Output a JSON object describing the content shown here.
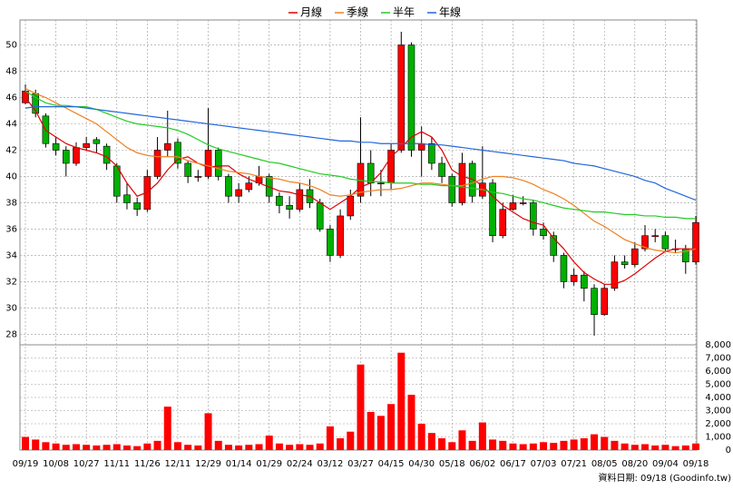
{
  "chart_data": {
    "type": "candlestick",
    "categories": [
      "09/19",
      null,
      null,
      "10/08",
      null,
      null,
      "10/27",
      null,
      null,
      "11/11",
      null,
      null,
      "11/26",
      null,
      null,
      "12/11",
      null,
      null,
      "12/29",
      null,
      null,
      "01/14",
      null,
      null,
      "01/29",
      null,
      null,
      "02/24",
      null,
      null,
      "03/12",
      null,
      null,
      "03/27",
      null,
      null,
      "04/15",
      null,
      null,
      "04/30",
      null,
      null,
      "05/18",
      null,
      null,
      "06/02",
      null,
      null,
      "06/17",
      null,
      null,
      "07/03",
      null,
      null,
      "07/21",
      null,
      null,
      "08/05",
      null,
      null,
      "08/20",
      null,
      null,
      "09/04",
      null,
      null,
      "09/18"
    ],
    "open": [
      45.6,
      46.3,
      44.6,
      42.5,
      42,
      41,
      42.2,
      42.8,
      42.3,
      40.8,
      38.6,
      38,
      37.5,
      40,
      42,
      42.6,
      41,
      40,
      40,
      42,
      40,
      38.5,
      39,
      39.5,
      40,
      38.5,
      37.8,
      37.5,
      39,
      38,
      36,
      34,
      37,
      38.5,
      41,
      39.5,
      39.5,
      42,
      50,
      42,
      42.5,
      41,
      40,
      38,
      41,
      38.5,
      39.5,
      35.5,
      37.5,
      38,
      38,
      36,
      35.5,
      34,
      32,
      32.5,
      31.5,
      29.5,
      31.5,
      33.5,
      33.3,
      34.5,
      35.5,
      35.5,
      34.5,
      34.5,
      33.5
    ],
    "high": [
      47,
      46.6,
      44.8,
      43,
      42.3,
      42.6,
      43,
      43,
      42.5,
      41,
      39.5,
      38.4,
      40.5,
      43,
      45,
      42.9,
      41.2,
      40.5,
      45.2,
      42.2,
      40.2,
      39.5,
      40,
      40.8,
      40.2,
      38.8,
      38.5,
      39.5,
      39.8,
      38.3,
      36.3,
      37.5,
      39,
      44.5,
      42,
      40.5,
      42.5,
      51,
      50.2,
      43.8,
      43,
      41.5,
      40.2,
      41.8,
      41.2,
      42.3,
      39.8,
      38,
      38.6,
      38.5,
      38.2,
      36.5,
      35.8,
      34.2,
      33,
      32.8,
      31.8,
      31.8,
      34,
      34,
      35,
      36.3,
      36,
      35.8,
      35.2,
      34.8,
      37
    ],
    "low": [
      45.5,
      44.5,
      42.2,
      41.6,
      40,
      40.8,
      42,
      41.8,
      40.5,
      38,
      37.5,
      37,
      37.3,
      39.8,
      41.5,
      40.6,
      39.5,
      39.6,
      39.8,
      39.7,
      38,
      38,
      38.8,
      39.3,
      38,
      37.2,
      36.8,
      37.3,
      37.6,
      35.8,
      33.5,
      33.8,
      36.7,
      38,
      38.5,
      38.5,
      39,
      41.8,
      41.5,
      40,
      40.5,
      39.5,
      37.7,
      37.8,
      38,
      38.3,
      35,
      35.3,
      37.4,
      37.8,
      35.5,
      35.2,
      33.5,
      31.5,
      31.7,
      30.5,
      27.9,
      29.4,
      31.3,
      33,
      33.1,
      34.3,
      35,
      34.3,
      34.2,
      32.6,
      33.3
    ],
    "close": [
      46.5,
      44.8,
      42.5,
      42,
      41,
      42.2,
      42.5,
      42.5,
      41,
      38.5,
      38,
      37.5,
      40,
      42,
      42.5,
      41,
      40,
      40,
      42,
      40,
      38.5,
      39,
      39.5,
      40,
      38.5,
      37.8,
      37.5,
      39,
      38,
      36,
      34,
      37,
      38.5,
      41,
      39.5,
      39.5,
      42,
      50,
      42,
      42.5,
      41,
      40,
      38,
      41,
      38.5,
      39.5,
      35.5,
      37.5,
      38,
      38,
      36,
      35.5,
      34,
      32,
      32.5,
      31.5,
      29.5,
      31.5,
      33.5,
      33.3,
      34.5,
      35.5,
      35.5,
      34.5,
      34.5,
      33.5,
      36.5
    ],
    "up_color": "#ff0000",
    "down_color": "#00b000",
    "ylim": [
      27.2,
      51.9
    ],
    "yticks": [
      28,
      30,
      32,
      34,
      36,
      38,
      40,
      42,
      44,
      46,
      48,
      50
    ],
    "grid": true,
    "series": [
      {
        "name": "月線",
        "color": "#e00000",
        "values": [
          46,
          45,
          43.5,
          43,
          42.5,
          42.2,
          42,
          41.8,
          41.5,
          40.8,
          39.5,
          38.5,
          38.8,
          39.5,
          40.5,
          41.3,
          41.5,
          41,
          40.7,
          40.8,
          40.8,
          40.2,
          39.8,
          39.5,
          39.2,
          38.9,
          38.8,
          38.6,
          38.5,
          38,
          37.5,
          38,
          38.5,
          39.2,
          39.5,
          40.3,
          41.5,
          42.2,
          43,
          43.4,
          43,
          42,
          40.5,
          40,
          39.8,
          39.3,
          38.5,
          37.8,
          37.3,
          36.8,
          36.5,
          36.3,
          35.3,
          34.5,
          33.5,
          32.7,
          32.2,
          31.8,
          31.8,
          32.1,
          32.6,
          33.2,
          33.8,
          34.3,
          34.5,
          34.5,
          34.5
        ]
      },
      {
        "name": "季線",
        "color": "#f08020",
        "values": [
          46.7,
          46.3,
          46,
          45.6,
          45.2,
          44.8,
          44.4,
          44,
          43.4,
          42.8,
          42.2,
          41.8,
          41.6,
          41.5,
          41.5,
          41.5,
          41.2,
          41,
          40.8,
          40.6,
          40.4,
          40.3,
          40.2,
          40,
          39.9,
          39.8,
          39.6,
          39.5,
          39.3,
          39,
          38.6,
          38.5,
          38.6,
          38.8,
          38.9,
          39,
          39,
          39.1,
          39.3,
          39.5,
          39.5,
          39.4,
          39.3,
          39.3,
          39.5,
          39.8,
          40,
          40,
          39.9,
          39.7,
          39.4,
          39,
          38.7,
          38.3,
          37.8,
          37.2,
          36.6,
          36.2,
          35.7,
          35.2,
          34.9,
          34.6,
          34.4,
          34.3,
          34.2,
          34.3,
          34.5
        ]
      },
      {
        "name": "半年",
        "color": "#22cc22",
        "values": [
          46.5,
          46,
          45.6,
          45.4,
          45.4,
          45.3,
          45.3,
          45.1,
          44.8,
          44.5,
          44.2,
          44,
          43.9,
          43.8,
          43.7,
          43.5,
          43.2,
          42.8,
          42.4,
          42.1,
          41.9,
          41.7,
          41.5,
          41.3,
          41.1,
          41,
          40.8,
          40.6,
          40.4,
          40.2,
          40.1,
          40,
          39.8,
          39.7,
          39.6,
          39.6,
          39.5,
          39.5,
          39.5,
          39.4,
          39.4,
          39.3,
          39.3,
          39.2,
          39.1,
          39,
          38.8,
          38.7,
          38.5,
          38.3,
          38.2,
          38,
          37.8,
          37.6,
          37.5,
          37.4,
          37.3,
          37.3,
          37.2,
          37.1,
          37.1,
          37,
          37,
          36.9,
          36.9,
          36.8,
          36.8
        ]
      },
      {
        "name": "年線",
        "color": "#2266dd",
        "values": [
          45.2,
          45.3,
          45.3,
          45.3,
          45.3,
          45.3,
          45.2,
          45.1,
          45,
          44.9,
          44.8,
          44.7,
          44.6,
          44.5,
          44.4,
          44.3,
          44.2,
          44.1,
          44,
          43.9,
          43.8,
          43.7,
          43.6,
          43.5,
          43.4,
          43.3,
          43.2,
          43.1,
          43,
          42.9,
          42.8,
          42.7,
          42.7,
          42.6,
          42.6,
          42.5,
          42.5,
          42.5,
          42.5,
          42.5,
          42.4,
          42.4,
          42.3,
          42.2,
          42.1,
          42,
          41.9,
          41.8,
          41.7,
          41.6,
          41.5,
          41.4,
          41.3,
          41.2,
          41,
          40.9,
          40.8,
          40.6,
          40.4,
          40.2,
          40,
          39.7,
          39.5,
          39.1,
          38.8,
          38.5,
          38.2
        ]
      }
    ],
    "volume": {
      "color": "#ff0000",
      "values": [
        1000,
        800,
        600,
        500,
        400,
        450,
        400,
        350,
        400,
        450,
        350,
        300,
        500,
        700,
        3300,
        600,
        400,
        350,
        2800,
        700,
        400,
        350,
        400,
        450,
        1100,
        500,
        400,
        450,
        400,
        500,
        1800,
        900,
        1400,
        6500,
        2900,
        2600,
        3500,
        7400,
        4200,
        2000,
        1300,
        900,
        600,
        1500,
        700,
        2100,
        800,
        700,
        500,
        450,
        500,
        600,
        550,
        700,
        800,
        900,
        1200,
        1000,
        700,
        500,
        400,
        450,
        350,
        400,
        300,
        350,
        500
      ],
      "ylim": [
        0,
        8000
      ],
      "yticks": [
        0,
        {
          "value": 1000,
          "label": "1,000"
        },
        {
          "value": 2000,
          "label": "2,000"
        },
        {
          "value": 3000,
          "label": "3,000"
        },
        {
          "value": 4000,
          "label": "4,000"
        },
        {
          "value": 5000,
          "label": "5,000"
        },
        {
          "value": 6000,
          "label": "6,000"
        },
        {
          "value": 7000,
          "label": "7,000"
        },
        {
          "value": 8000,
          "label": "8,000"
        }
      ]
    },
    "footer": "資料日期: 09/18  (Goodinfo.tw)"
  }
}
